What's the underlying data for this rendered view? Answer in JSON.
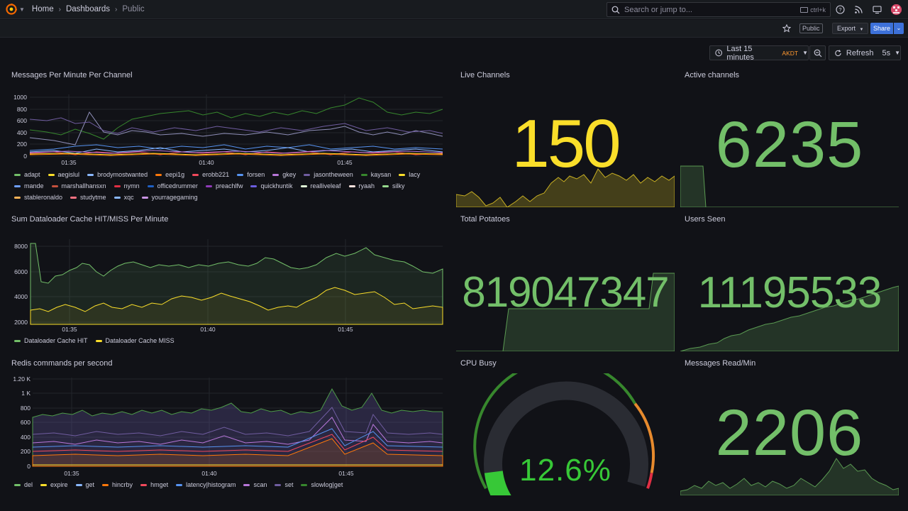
{
  "breadcrumbs": {
    "home": "Home",
    "dashboards": "Dashboards",
    "current": "Public"
  },
  "search": {
    "placeholder": "Search or jump to...",
    "shortcut": "ctrl+k"
  },
  "toolbar": {
    "public_badge": "Public",
    "export_label": "Export",
    "share_label": "Share"
  },
  "time": {
    "range_label": "Last 15 minutes",
    "timezone": "AKDT",
    "refresh_label": "Refresh",
    "refresh_interval": "5s"
  },
  "colors": {
    "green": "#73bf69",
    "yellow": "#fade2a",
    "stat_green": "#73bf69"
  },
  "panels": {
    "messages_per_minute": {
      "title": "Messages Per Minute Per Channel",
      "y_ticks": [
        "1000",
        "800",
        "600",
        "400",
        "200",
        "0"
      ],
      "x_ticks": [
        "01:35",
        "01:40",
        "01:45"
      ],
      "legend": [
        {
          "name": "adapt",
          "color": "#73bf69"
        },
        {
          "name": "aegislul",
          "color": "#fade2a"
        },
        {
          "name": "brodymostwanted",
          "color": "#8ab8ff"
        },
        {
          "name": "eepi1g",
          "color": "#ff780a"
        },
        {
          "name": "erobb221",
          "color": "#f2495c"
        },
        {
          "name": "forsen",
          "color": "#5794f2"
        },
        {
          "name": "gkey",
          "color": "#b877d9"
        },
        {
          "name": "jasontheween",
          "color": "#705da0"
        },
        {
          "name": "kaysan",
          "color": "#37872d"
        },
        {
          "name": "lacy",
          "color": "#fade2a"
        },
        {
          "name": "mande",
          "color": "#6e9fff"
        },
        {
          "name": "marshallhansxn",
          "color": "#c4513d"
        },
        {
          "name": "nymn",
          "color": "#e02f44"
        },
        {
          "name": "officedrummer",
          "color": "#1f60c4"
        },
        {
          "name": "preachlfw",
          "color": "#8f3bb8"
        },
        {
          "name": "quickhuntik",
          "color": "#6c5ee0"
        },
        {
          "name": "realliveleaf",
          "color": "#e0f9d7"
        },
        {
          "name": "ryaah",
          "color": "#fce2de"
        },
        {
          "name": "silky",
          "color": "#96d98d"
        },
        {
          "name": "stableronaldo",
          "color": "#ffb357"
        },
        {
          "name": "studytme",
          "color": "#ff7383"
        },
        {
          "name": "xqc",
          "color": "#8ab8ff"
        },
        {
          "name": "yourragegaming",
          "color": "#ca95e5"
        }
      ]
    },
    "live_channels": {
      "title": "Live Channels",
      "value": "150",
      "color": "#fade2a"
    },
    "active_channels": {
      "title": "Active channels",
      "value": "6235",
      "color": "#73bf69"
    },
    "dataloader": {
      "title": "Sum Dataloader Cache HIT/MISS Per Minute",
      "y_ticks": [
        "8000",
        "6000",
        "4000",
        "2000"
      ],
      "x_ticks": [
        "01:35",
        "01:40",
        "01:45"
      ],
      "legend": [
        {
          "name": "Dataloader Cache HIT",
          "color": "#73bf69"
        },
        {
          "name": "Dataloader Cache MISS",
          "color": "#fade2a"
        }
      ]
    },
    "total_potatoes": {
      "title": "Total Potatoes",
      "value": "819047347",
      "color": "#73bf69"
    },
    "users_seen": {
      "title": "Users Seen",
      "value": "11195533",
      "color": "#73bf69"
    },
    "redis": {
      "title": "Redis commands per second",
      "y_ticks": [
        "1.20 K",
        "1 K",
        "800",
        "600",
        "400",
        "200",
        "0"
      ],
      "x_ticks": [
        "01:35",
        "01:40",
        "01:45"
      ],
      "legend": [
        {
          "name": "del",
          "color": "#73bf69"
        },
        {
          "name": "expire",
          "color": "#fade2a"
        },
        {
          "name": "get",
          "color": "#8ab8ff"
        },
        {
          "name": "hincrby",
          "color": "#ff780a"
        },
        {
          "name": "hmget",
          "color": "#f2495c"
        },
        {
          "name": "latency|histogram",
          "color": "#5794f2"
        },
        {
          "name": "scan",
          "color": "#b877d9"
        },
        {
          "name": "set",
          "color": "#705da0"
        },
        {
          "name": "slowlog|get",
          "color": "#37872d"
        }
      ]
    },
    "cpu_busy": {
      "title": "CPU Busy",
      "value": "12.6%",
      "percent": 12.6,
      "color": "#37c837"
    },
    "messages_read": {
      "title": "Messages Read/Min",
      "value": "2206",
      "color": "#73bf69"
    }
  }
}
